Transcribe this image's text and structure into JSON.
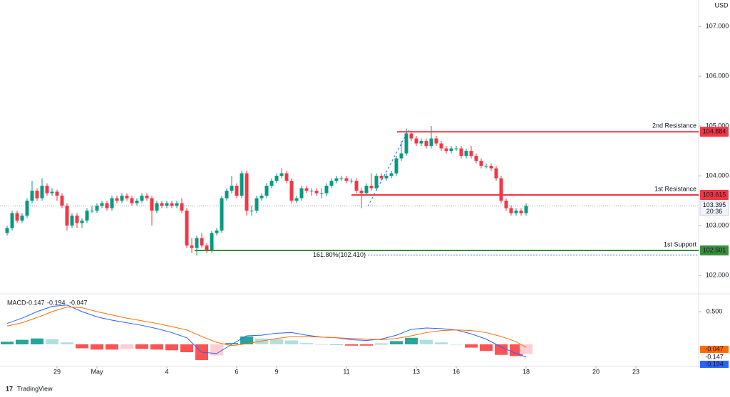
{
  "chart_data": [
    {
      "type": "candlestick",
      "currency": "USD",
      "countdown": "20:36",
      "up_color": "#089981",
      "down_color": "#f23645",
      "ylim": [
        101.644,
        107.53
      ],
      "xlim": [
        -1.43,
        138.57
      ],
      "yticks": [
        {
          "value": 102,
          "label": "102.000"
        },
        {
          "value": 103,
          "label": "103.000"
        },
        {
          "value": 104,
          "label": "104.000"
        },
        {
          "value": 105,
          "label": "105.000"
        },
        {
          "value": 106,
          "label": "106.000"
        },
        {
          "value": 107,
          "label": "107.000"
        }
      ],
      "open": [
        102.85,
        102.95,
        103.25,
        103.1,
        103.2,
        103.5,
        103.7,
        103.55,
        103.8,
        103.65,
        103.68,
        103.6,
        103.4,
        103.0,
        103.2,
        103.05,
        103.1,
        103.3,
        103.3,
        103.4,
        103.45,
        103.35,
        103.55,
        103.5,
        103.6,
        103.55,
        103.45,
        103.5,
        103.6,
        103.55,
        103.3,
        103.45,
        103.4,
        103.45,
        103.4,
        103.45,
        103.3,
        102.6,
        102.55,
        102.75,
        102.6,
        102.5,
        102.85,
        102.9,
        103.55,
        103.7,
        103.8,
        103.6,
        104.05,
        103.3,
        103.3,
        103.55,
        103.6,
        103.8,
        103.9,
        104.0,
        104.05,
        103.9,
        103.5,
        103.55,
        103.75,
        103.7,
        103.7,
        103.65,
        103.65,
        103.8,
        103.9,
        103.95,
        103.95,
        103.9,
        103.9,
        103.7,
        103.65,
        103.8,
        103.75,
        104.0,
        103.95,
        104.0,
        104.05,
        104.35,
        104.45,
        104.85,
        104.75,
        104.65,
        104.7,
        104.6,
        104.75,
        104.65,
        104.55,
        104.5,
        104.55,
        104.55,
        104.4,
        104.5,
        104.4,
        104.3,
        104.2,
        104.2,
        104.15,
        103.95,
        103.5,
        103.35,
        103.25,
        103.3,
        103.25
      ],
      "high": [
        103.0,
        103.3,
        103.3,
        103.25,
        103.55,
        103.9,
        103.75,
        103.95,
        103.85,
        103.75,
        103.72,
        103.65,
        103.45,
        103.25,
        103.25,
        103.15,
        103.35,
        103.4,
        103.45,
        103.5,
        103.5,
        103.6,
        103.6,
        103.65,
        103.65,
        103.6,
        103.55,
        103.65,
        103.65,
        103.6,
        103.5,
        103.5,
        103.5,
        103.5,
        103.5,
        103.55,
        103.35,
        102.75,
        102.8,
        102.85,
        102.65,
        102.9,
        102.95,
        103.6,
        103.75,
        104.0,
        103.85,
        104.1,
        104.1,
        103.4,
        103.6,
        103.65,
        103.85,
        103.95,
        104.05,
        104.15,
        104.1,
        103.95,
        103.6,
        103.8,
        103.8,
        103.75,
        103.75,
        103.75,
        103.85,
        103.95,
        104.0,
        104.0,
        104.0,
        103.95,
        103.95,
        103.75,
        103.85,
        104.05,
        104.05,
        104.05,
        104.05,
        104.1,
        104.4,
        104.7,
        104.95,
        104.9,
        104.8,
        104.75,
        104.75,
        105.0,
        104.8,
        104.7,
        104.6,
        104.6,
        104.6,
        104.6,
        104.55,
        104.6,
        104.45,
        104.35,
        104.25,
        104.25,
        104.2,
        104.0,
        103.55,
        103.4,
        103.35,
        103.35,
        103.45
      ],
      "low": [
        102.8,
        102.9,
        103.05,
        103.05,
        103.15,
        103.45,
        103.5,
        103.5,
        103.6,
        103.6,
        103.5,
        103.35,
        102.9,
        102.95,
        102.95,
        102.95,
        103.05,
        103.25,
        103.25,
        103.35,
        103.3,
        103.3,
        103.45,
        103.45,
        103.5,
        103.4,
        103.4,
        103.45,
        103.5,
        103.0,
        103.25,
        103.35,
        103.35,
        103.35,
        103.35,
        103.25,
        102.55,
        102.45,
        102.4,
        102.55,
        102.45,
        102.45,
        102.8,
        102.85,
        103.5,
        103.65,
        103.55,
        103.55,
        103.2,
        103.2,
        103.25,
        103.5,
        103.55,
        103.75,
        103.85,
        103.95,
        103.85,
        103.45,
        103.45,
        103.5,
        103.65,
        103.6,
        103.6,
        103.55,
        103.6,
        103.75,
        103.85,
        103.9,
        103.85,
        103.85,
        103.65,
        103.35,
        103.6,
        103.7,
        103.7,
        103.9,
        103.9,
        103.95,
        104.0,
        104.3,
        104.4,
        104.7,
        104.6,
        104.6,
        104.55,
        104.55,
        104.6,
        104.5,
        104.45,
        104.45,
        104.5,
        104.35,
        104.35,
        104.35,
        104.25,
        104.15,
        104.15,
        104.1,
        103.9,
        103.45,
        103.3,
        103.2,
        103.2,
        103.2,
        103.2
      ],
      "close": [
        102.95,
        103.25,
        103.1,
        103.2,
        103.5,
        103.7,
        103.55,
        103.8,
        103.65,
        103.68,
        103.6,
        103.4,
        103.0,
        103.2,
        103.05,
        103.1,
        103.3,
        103.3,
        103.4,
        103.45,
        103.35,
        103.55,
        103.5,
        103.6,
        103.55,
        103.45,
        103.5,
        103.6,
        103.55,
        103.3,
        103.45,
        103.4,
        103.45,
        103.4,
        103.45,
        103.3,
        102.6,
        102.55,
        102.75,
        102.6,
        102.5,
        102.85,
        102.9,
        103.55,
        103.7,
        103.8,
        103.6,
        104.05,
        103.3,
        103.3,
        103.55,
        103.6,
        103.8,
        103.9,
        104.0,
        104.05,
        103.9,
        103.5,
        103.55,
        103.75,
        103.7,
        103.7,
        103.65,
        103.65,
        103.8,
        103.9,
        103.95,
        103.95,
        103.9,
        103.9,
        103.7,
        103.65,
        103.8,
        103.75,
        104.0,
        103.95,
        104.0,
        104.05,
        104.35,
        104.45,
        104.85,
        104.75,
        104.65,
        104.7,
        104.6,
        104.75,
        104.65,
        104.55,
        104.5,
        104.55,
        104.55,
        104.4,
        104.5,
        104.4,
        104.3,
        104.2,
        104.2,
        104.15,
        103.95,
        103.5,
        103.35,
        103.25,
        103.3,
        103.25,
        103.395
      ],
      "levels": [
        {
          "name": "2nd Resistance",
          "value": 104.884,
          "color": "#f23645"
        },
        {
          "name": "1st Resistance",
          "value": 103.615,
          "color": "#f23645"
        },
        {
          "name": "1st Support",
          "value": 102.501,
          "color": "#388e3c"
        },
        {
          "name": "161.80%(102.410)",
          "value": 102.41,
          "color": "#2962ff",
          "style": "dotted"
        }
      ]
    },
    {
      "type": "macd",
      "title": "MACD",
      "source": "TradingView",
      "ylim": [
        -0.337,
        0.75
      ],
      "xlim": [
        -1.43,
        138.57
      ],
      "yticks": [
        {
          "value": 0.5,
          "label": "0.500"
        }
      ],
      "xticks": [
        {
          "value": 10,
          "label": "29"
        },
        {
          "value": 18,
          "label": "May"
        },
        {
          "value": 32,
          "label": "4"
        },
        {
          "value": 46,
          "label": "6"
        },
        {
          "value": 54,
          "label": "9"
        },
        {
          "value": 68,
          "label": "11"
        },
        {
          "value": 82,
          "label": "13"
        },
        {
          "value": 90,
          "label": "16"
        },
        {
          "value": 104,
          "label": "18"
        },
        {
          "value": 118,
          "label": "20"
        },
        {
          "value": 126,
          "label": "23"
        }
      ],
      "x": [
        0,
        3,
        6,
        9,
        12,
        15,
        18,
        21,
        24,
        27,
        30,
        33,
        36,
        39,
        42,
        45,
        48,
        51,
        54,
        57,
        60,
        63,
        66,
        69,
        72,
        75,
        78,
        81,
        84,
        87,
        90,
        93,
        96,
        99,
        102,
        104
      ],
      "series": [
        {
          "color": "#2962ff",
          "values": [
            0.32,
            0.4,
            0.5,
            0.58,
            0.6,
            0.5,
            0.42,
            0.37,
            0.33,
            0.29,
            0.24,
            0.18,
            0.1,
            -0.12,
            -0.14,
            0,
            0.13,
            0.14,
            0.17,
            0.18,
            0.14,
            0.11,
            0.1,
            0.07,
            0.06,
            0.08,
            0.14,
            0.23,
            0.25,
            0.24,
            0.22,
            0.16,
            0.08,
            -0.04,
            -0.14,
            -0.194
          ]
        },
        {
          "color": "#ff6d00",
          "values": [
            0.28,
            0.33,
            0.41,
            0.5,
            0.57,
            0.56,
            0.5,
            0.45,
            0.4,
            0.36,
            0.32,
            0.27,
            0.22,
            0.12,
            0.03,
            -0.02,
            0.01,
            0.05,
            0.09,
            0.12,
            0.12,
            0.11,
            0.1,
            0.09,
            0.08,
            0.07,
            0.09,
            0.13,
            0.18,
            0.21,
            0.22,
            0.21,
            0.18,
            0.12,
            0.04,
            -0.047
          ]
        }
      ],
      "histogram": [
        0.04,
        0.07,
        0.09,
        0.08,
        0.03,
        -0.06,
        -0.08,
        -0.08,
        -0.07,
        -0.07,
        -0.08,
        -0.09,
        -0.12,
        -0.24,
        -0.17,
        0.02,
        0.12,
        0.09,
        0.08,
        0.06,
        0.02,
        0,
        0,
        -0.02,
        -0.02,
        0.01,
        0.05,
        0.1,
        0.07,
        0.03,
        0,
        -0.05,
        -0.1,
        -0.16,
        -0.18,
        -0.147
      ]
    }
  ]
}
